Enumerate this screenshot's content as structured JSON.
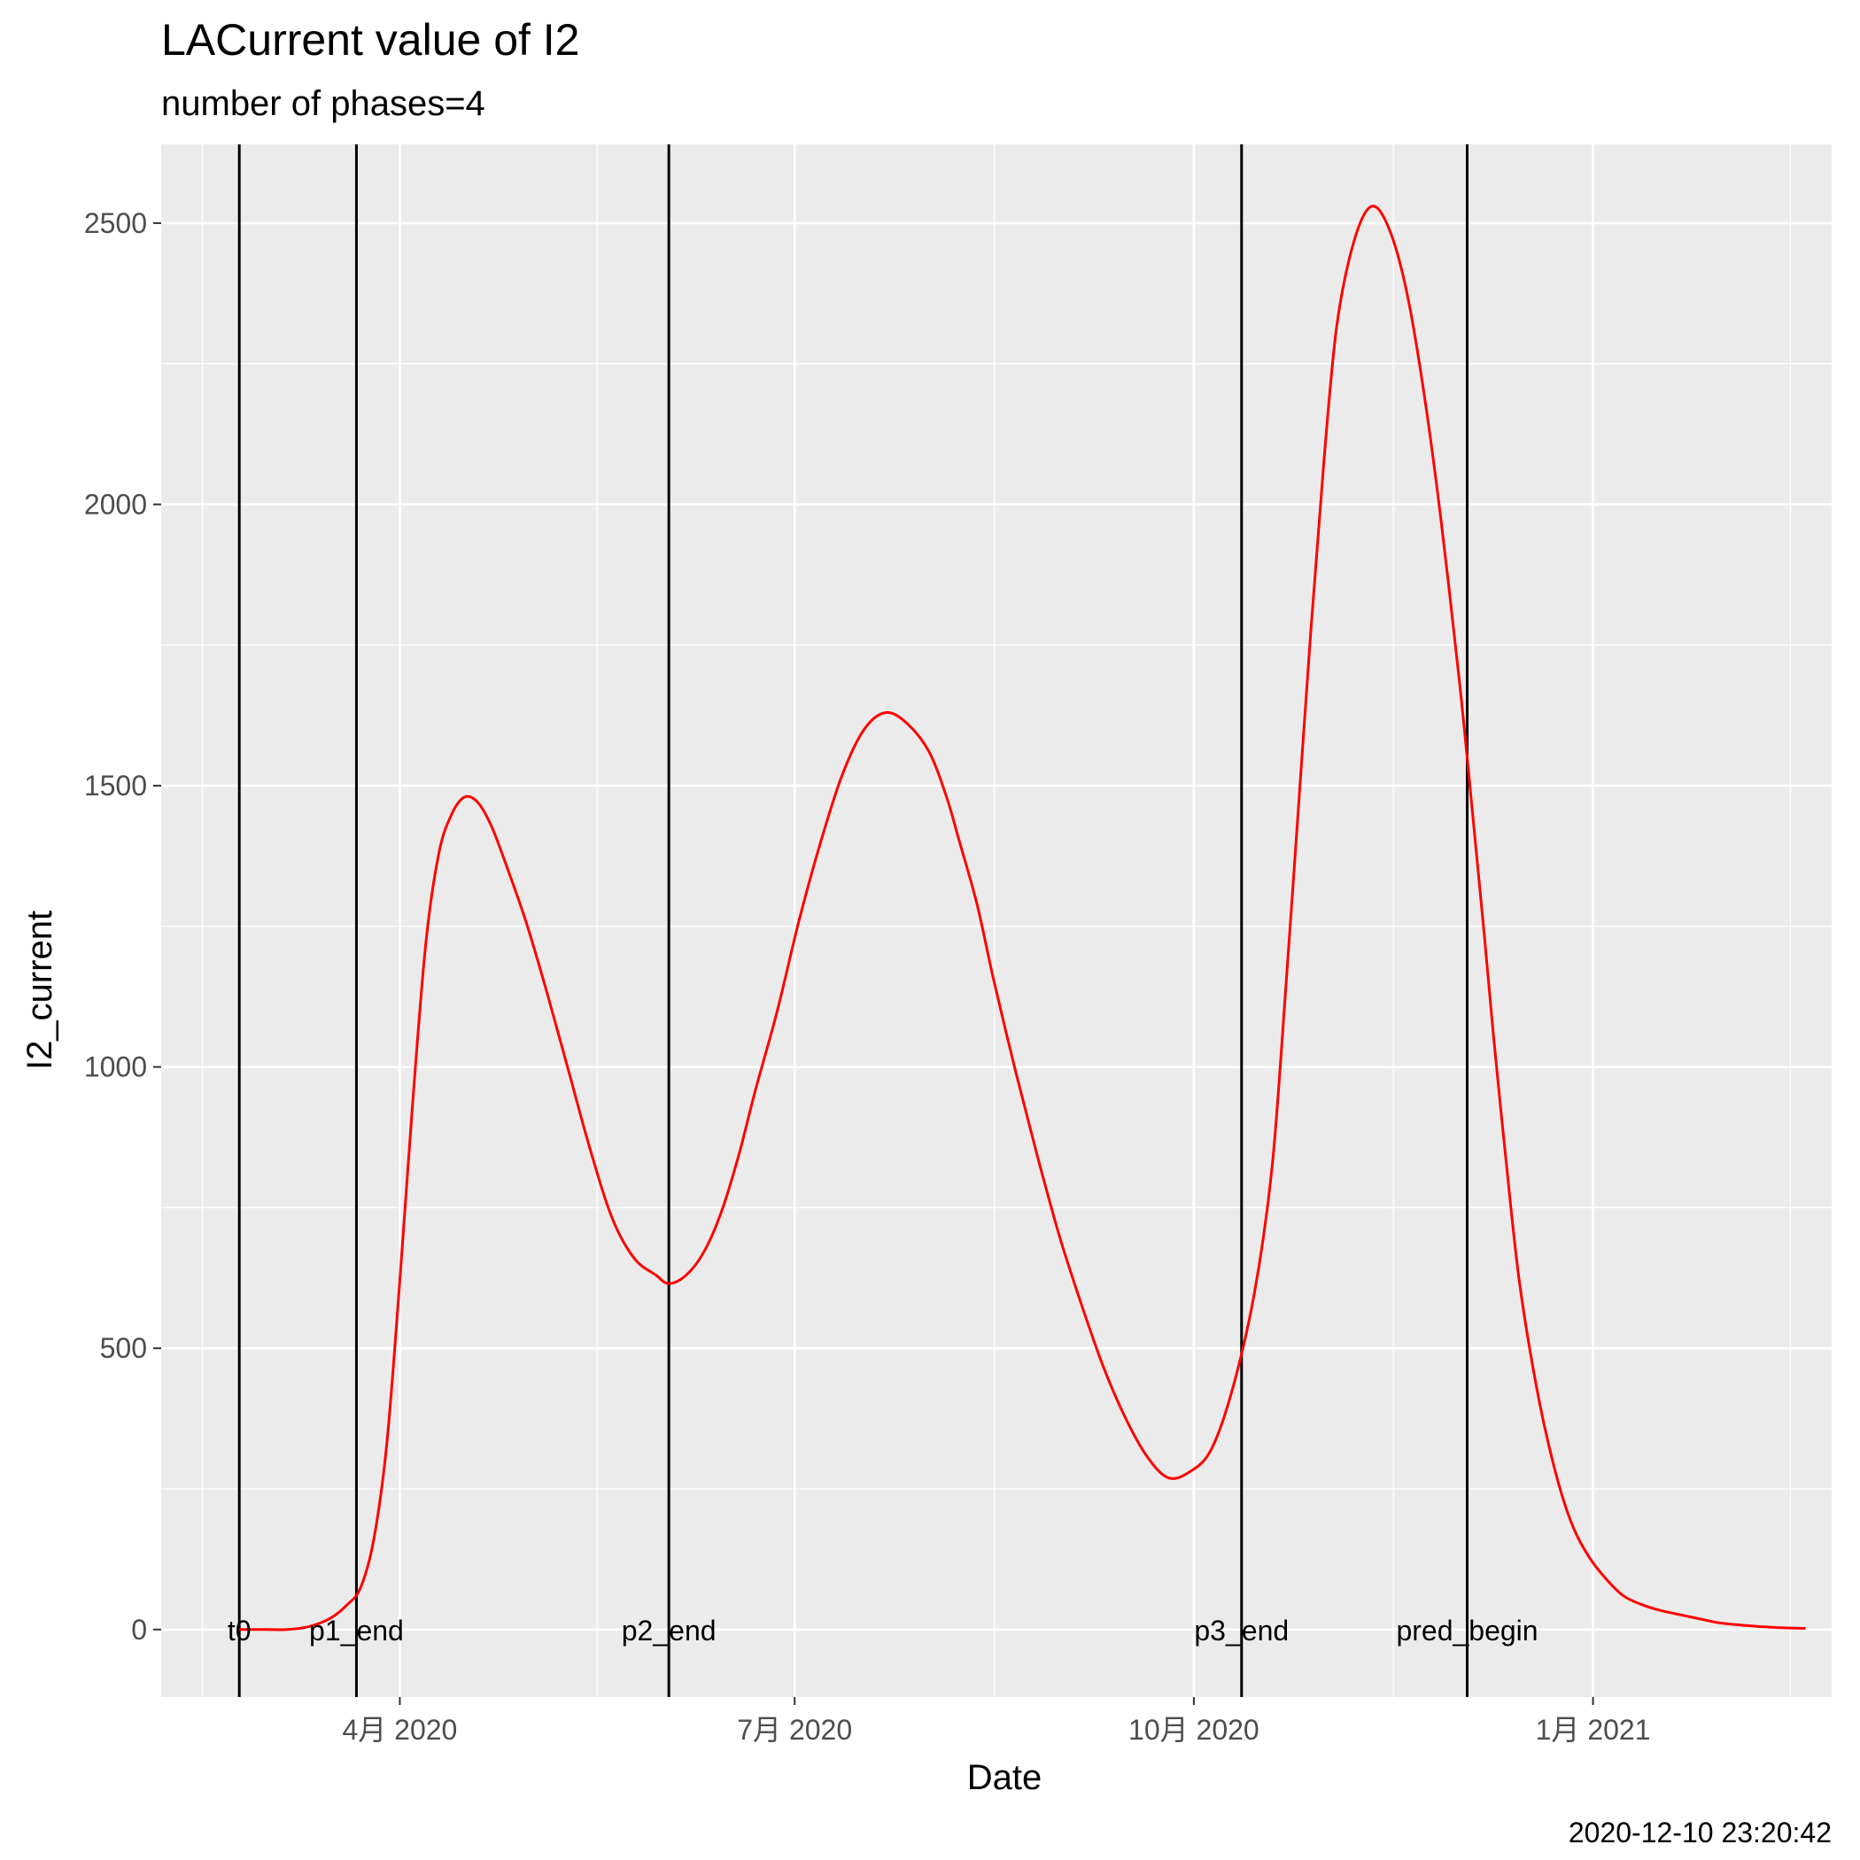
{
  "chart_data": {
    "type": "line",
    "title": "LACurrent value of I2",
    "subtitle": "number of phases=4",
    "xlabel": "Date",
    "ylabel": "I2_current",
    "caption": "2020-12-10 23:20:42",
    "grid": true,
    "xlim": [
      "2020-02-06",
      "2021-02-25"
    ],
    "ylim": [
      -120,
      2640
    ],
    "x_ticks": [
      {
        "date": "2020-04-01",
        "label": "4月 2020"
      },
      {
        "date": "2020-07-01",
        "label": "7月 2020"
      },
      {
        "date": "2020-10-01",
        "label": "10月 2020"
      },
      {
        "date": "2021-01-01",
        "label": "1月 2021"
      }
    ],
    "y_ticks": [
      {
        "value": 0,
        "label": "0"
      },
      {
        "value": 500,
        "label": "500"
      },
      {
        "value": 1000,
        "label": "1000"
      },
      {
        "value": 1500,
        "label": "1500"
      },
      {
        "value": 2000,
        "label": "2000"
      },
      {
        "value": 2500,
        "label": "2500"
      }
    ],
    "vlines": [
      {
        "date": "2020-02-24",
        "label": "t0"
      },
      {
        "date": "2020-03-22",
        "label": "p1_end"
      },
      {
        "date": "2020-06-02",
        "label": "p2_end"
      },
      {
        "date": "2020-10-12",
        "label": "p3_end"
      },
      {
        "date": "2020-12-03",
        "label": "pred_begin"
      }
    ],
    "series": [
      {
        "color": "#ff0000",
        "x": [
          "2020-02-24",
          "2020-03-01",
          "2020-03-06",
          "2020-03-11",
          "2020-03-16",
          "2020-03-20",
          "2020-03-23",
          "2020-03-26",
          "2020-03-29",
          "2020-04-01",
          "2020-04-04",
          "2020-04-07",
          "2020-04-10",
          "2020-04-13",
          "2020-04-16",
          "2020-04-19",
          "2020-04-22",
          "2020-04-25",
          "2020-04-30",
          "2020-05-05",
          "2020-05-10",
          "2020-05-15",
          "2020-05-20",
          "2020-05-25",
          "2020-05-30",
          "2020-06-02",
          "2020-06-06",
          "2020-06-10",
          "2020-06-14",
          "2020-06-18",
          "2020-06-22",
          "2020-06-27",
          "2020-07-02",
          "2020-07-07",
          "2020-07-12",
          "2020-07-17",
          "2020-07-22",
          "2020-07-27",
          "2020-08-01",
          "2020-08-05",
          "2020-08-08",
          "2020-08-12",
          "2020-08-16",
          "2020-08-21",
          "2020-08-26",
          "2020-08-31",
          "2020-09-05",
          "2020-09-10",
          "2020-09-15",
          "2020-09-20",
          "2020-09-25",
          "2020-09-30",
          "2020-10-05",
          "2020-10-10",
          "2020-10-15",
          "2020-10-19",
          "2020-10-22",
          "2020-10-25",
          "2020-10-28",
          "2020-10-31",
          "2020-11-03",
          "2020-11-07",
          "2020-11-11",
          "2020-11-15",
          "2020-11-19",
          "2020-11-23",
          "2020-11-27",
          "2020-12-01",
          "2020-12-03",
          "2020-12-05",
          "2020-12-07",
          "2020-12-09",
          "2020-12-12",
          "2020-12-15",
          "2020-12-19",
          "2020-12-23",
          "2020-12-27",
          "2020-12-31",
          "2021-01-04",
          "2021-01-08",
          "2021-01-12",
          "2021-01-16",
          "2021-01-20",
          "2021-01-25",
          "2021-01-30",
          "2021-02-04",
          "2021-02-09",
          "2021-02-14",
          "2021-02-19"
        ],
        "y": [
          0,
          0,
          0,
          5,
          20,
          45,
          75,
          160,
          330,
          620,
          940,
          1220,
          1380,
          1450,
          1480,
          1470,
          1430,
          1370,
          1260,
          1130,
          990,
          850,
          730,
          660,
          630,
          615,
          630,
          670,
          740,
          840,
          960,
          1100,
          1260,
          1400,
          1520,
          1600,
          1630,
          1610,
          1560,
          1480,
          1400,
          1290,
          1150,
          990,
          840,
          700,
          580,
          470,
          380,
          310,
          270,
          280,
          320,
          430,
          600,
          820,
          1120,
          1450,
          1780,
          2080,
          2320,
          2470,
          2530,
          2490,
          2380,
          2200,
          1970,
          1700,
          1550,
          1390,
          1230,
          1060,
          830,
          620,
          430,
          290,
          190,
          130,
          90,
          60,
          45,
          35,
          28,
          20,
          12,
          8,
          5,
          3,
          2
        ]
      }
    ]
  }
}
